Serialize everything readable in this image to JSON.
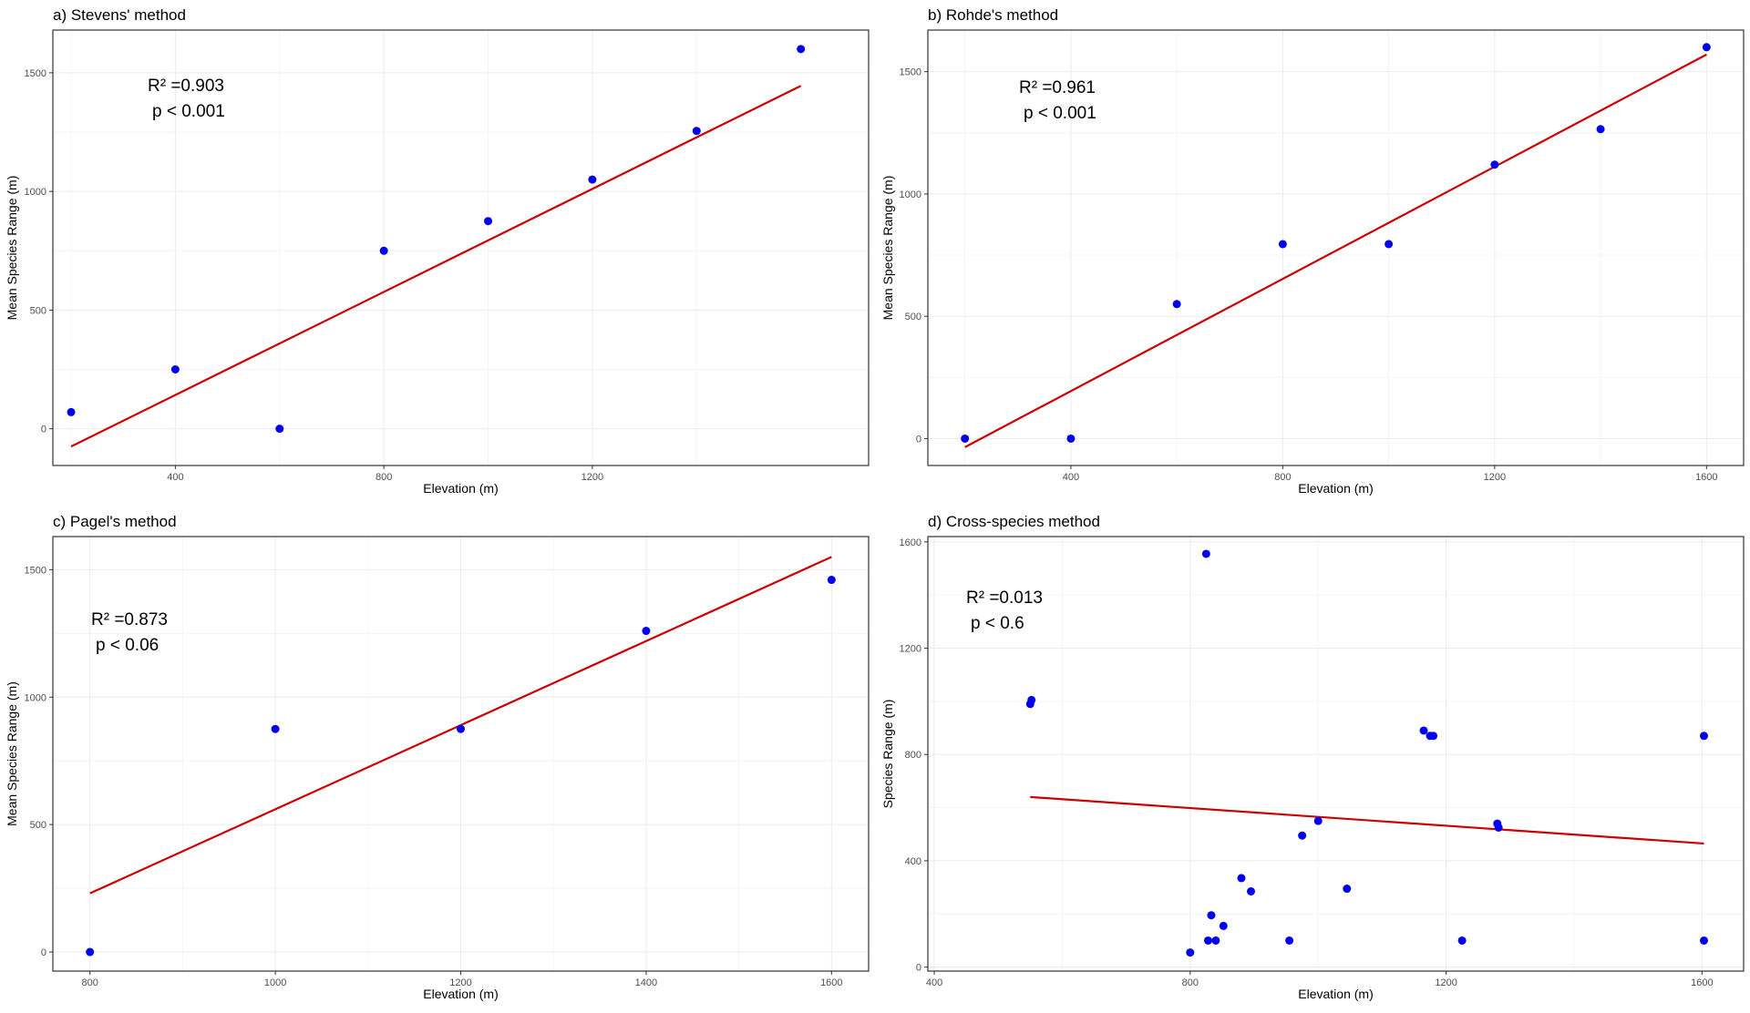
{
  "chart_data": [
    {
      "type": "scatter",
      "title": "a) Stevens' method",
      "xlabel": "Elevation (m)",
      "ylabel": "Mean Species Range (m)",
      "xlim": [
        165,
        1730
      ],
      "ylim": [
        -155,
        1680
      ],
      "xticks": [
        400,
        800,
        1200
      ],
      "yticks": [
        0,
        500,
        1000,
        1500
      ],
      "grid": true,
      "points": [
        {
          "x": 200,
          "y": 70
        },
        {
          "x": 400,
          "y": 250
        },
        {
          "x": 600,
          "y": 0
        },
        {
          "x": 800,
          "y": 750
        },
        {
          "x": 1000,
          "y": 875
        },
        {
          "x": 1200,
          "y": 1050
        },
        {
          "x": 1400,
          "y": 1255
        },
        {
          "x": 1600,
          "y": 1600
        }
      ],
      "fit_line": [
        {
          "x": 200,
          "y": -75
        },
        {
          "x": 1600,
          "y": 1445
        }
      ],
      "annotation": [
        "R² =0.903",
        "p < 0.001"
      ]
    },
    {
      "type": "scatter",
      "title": "b) Rohde's method",
      "xlabel": "Elevation (m)",
      "ylabel": "Mean Species Range (m)",
      "xlim": [
        130,
        1670
      ],
      "ylim": [
        -110,
        1670
      ],
      "xticks": [
        400,
        800,
        1200,
        1600
      ],
      "yticks": [
        0,
        500,
        1000,
        1500
      ],
      "grid": true,
      "points": [
        {
          "x": 200,
          "y": 0
        },
        {
          "x": 400,
          "y": 0
        },
        {
          "x": 600,
          "y": 550
        },
        {
          "x": 800,
          "y": 795
        },
        {
          "x": 1000,
          "y": 795
        },
        {
          "x": 1200,
          "y": 1120
        },
        {
          "x": 1400,
          "y": 1265
        },
        {
          "x": 1600,
          "y": 1600
        }
      ],
      "fit_line": [
        {
          "x": 200,
          "y": -35
        },
        {
          "x": 1600,
          "y": 1570
        }
      ],
      "annotation": [
        "R² =0.961",
        "p < 0.001"
      ]
    },
    {
      "type": "scatter",
      "title": "c) Pagel's method",
      "xlabel": "Elevation (m)",
      "ylabel": "Mean Species Range (m)",
      "xlim": [
        760,
        1640
      ],
      "ylim": [
        -75,
        1630
      ],
      "xticks": [
        800,
        1000,
        1200,
        1400,
        1600
      ],
      "yticks": [
        0,
        500,
        1000,
        1500
      ],
      "grid": true,
      "points": [
        {
          "x": 800,
          "y": 0
        },
        {
          "x": 1000,
          "y": 875
        },
        {
          "x": 1200,
          "y": 875
        },
        {
          "x": 1400,
          "y": 1260
        },
        {
          "x": 1600,
          "y": 1460
        }
      ],
      "fit_line": [
        {
          "x": 800,
          "y": 230
        },
        {
          "x": 1600,
          "y": 1550
        }
      ],
      "annotation": [
        "R² =0.873",
        "p < 0.06"
      ]
    },
    {
      "type": "scatter",
      "title": "d) Cross-species method",
      "xlabel": "Elevation (m)",
      "ylabel": "Species Range (m)",
      "xlim": [
        390,
        1665
      ],
      "ylim": [
        -15,
        1620
      ],
      "xticks": [
        400,
        800,
        1200,
        1600
      ],
      "yticks": [
        0,
        400,
        800,
        1200,
        1600
      ],
      "grid": true,
      "points": [
        {
          "x": 550,
          "y": 990
        },
        {
          "x": 552,
          "y": 1005
        },
        {
          "x": 800,
          "y": 55
        },
        {
          "x": 825,
          "y": 1555
        },
        {
          "x": 828,
          "y": 100
        },
        {
          "x": 833,
          "y": 195
        },
        {
          "x": 840,
          "y": 100
        },
        {
          "x": 852,
          "y": 155
        },
        {
          "x": 880,
          "y": 335
        },
        {
          "x": 895,
          "y": 285
        },
        {
          "x": 955,
          "y": 100
        },
        {
          "x": 975,
          "y": 495
        },
        {
          "x": 1000,
          "y": 550
        },
        {
          "x": 1045,
          "y": 295
        },
        {
          "x": 1165,
          "y": 890
        },
        {
          "x": 1175,
          "y": 870
        },
        {
          "x": 1180,
          "y": 870
        },
        {
          "x": 1225,
          "y": 100
        },
        {
          "x": 1280,
          "y": 540
        },
        {
          "x": 1282,
          "y": 525
        },
        {
          "x": 1603,
          "y": 870
        },
        {
          "x": 1603,
          "y": 100
        }
      ],
      "fit_line": [
        {
          "x": 550,
          "y": 640
        },
        {
          "x": 1603,
          "y": 465
        }
      ],
      "annotation": [
        "R² =0.013",
        "p < 0.6"
      ]
    }
  ]
}
